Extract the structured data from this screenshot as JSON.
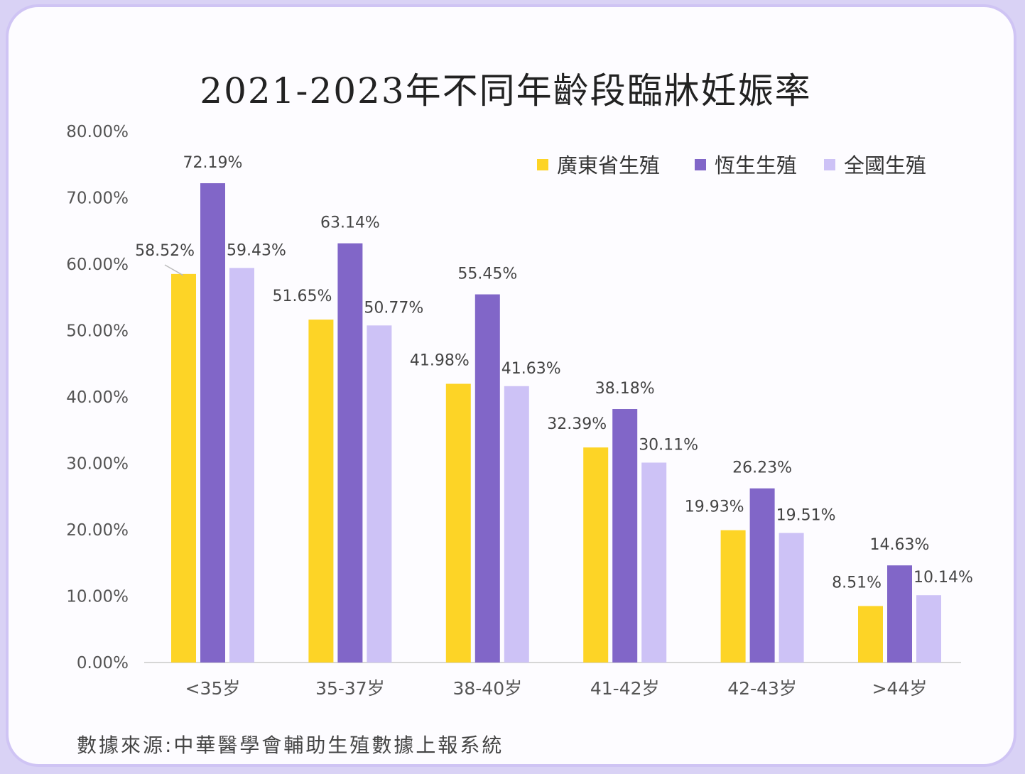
{
  "chart_data": {
    "type": "bar",
    "title": "2021-2023年不同年齡段臨牀妊娠率",
    "categories": [
      "<35岁",
      "35-37岁",
      "38-40岁",
      "41-42岁",
      "42-43岁",
      ">44岁"
    ],
    "series": [
      {
        "name": "廣東省生殖",
        "color": "#fdd426",
        "values": [
          58.52,
          51.65,
          41.98,
          32.39,
          19.93,
          8.51
        ],
        "labels": [
          "58.52%",
          "51.65%",
          "41.98%",
          "32.39%",
          "19.93%",
          "8.51%"
        ]
      },
      {
        "name": "恆生生殖",
        "color": "#8166c8",
        "values": [
          72.19,
          63.14,
          55.45,
          38.18,
          26.23,
          14.63
        ],
        "labels": [
          "72.19%",
          "63.14%",
          "55.45%",
          "38.18%",
          "26.23%",
          "14.63%"
        ]
      },
      {
        "name": "全國生殖",
        "color": "#cdc2f6",
        "values": [
          59.43,
          50.77,
          41.63,
          30.11,
          19.51,
          10.14
        ],
        "labels": [
          "59.43%",
          "50.77%",
          "41.63%",
          "30.11%",
          "19.51%",
          "10.14%"
        ]
      }
    ],
    "y_ticks": [
      "0.00%",
      "10.00%",
      "20.00%",
      "30.00%",
      "40.00%",
      "50.00%",
      "60.00%",
      "70.00%",
      "80.00%"
    ],
    "ylim": [
      0,
      80
    ],
    "xlabel": "",
    "ylabel": "",
    "grid": false,
    "legend": "top-right"
  },
  "source": "數據來源:中華醫學會輔助生殖數據上報系統",
  "colors": {
    "frame": "#cfc4f4",
    "background": "#fdfcff"
  }
}
